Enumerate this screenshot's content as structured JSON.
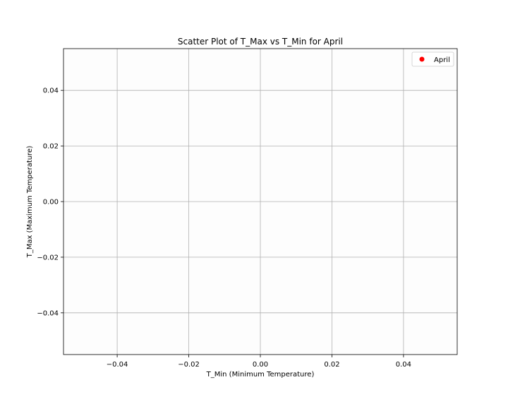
{
  "chart_data": {
    "type": "scatter",
    "title": "Scatter Plot of T_Max vs T_Min for April",
    "xlabel": "T_Min (Minimum Temperature)",
    "ylabel": "T_Max (Maximum Temperature)",
    "xlim": [
      -0.055,
      0.055
    ],
    "ylim": [
      -0.055,
      0.055
    ],
    "xticks": [
      -0.04,
      -0.02,
      0.0,
      0.02,
      0.04
    ],
    "xtick_labels": [
      "−0.04",
      "−0.02",
      "0.00",
      "0.02",
      "0.04"
    ],
    "yticks": [
      -0.04,
      -0.02,
      0.0,
      0.02,
      0.04
    ],
    "ytick_labels": [
      "−0.04",
      "−0.02",
      "0.00",
      "0.02",
      "0.04"
    ],
    "grid": true,
    "legend_position": "upper right",
    "series": [
      {
        "name": "April",
        "color": "#ff0000",
        "marker": "circle",
        "x": [],
        "y": []
      }
    ]
  },
  "colors": {
    "axes_background": "#fdfdfd",
    "grid": "#b0b0b0",
    "spine": "#000000"
  }
}
